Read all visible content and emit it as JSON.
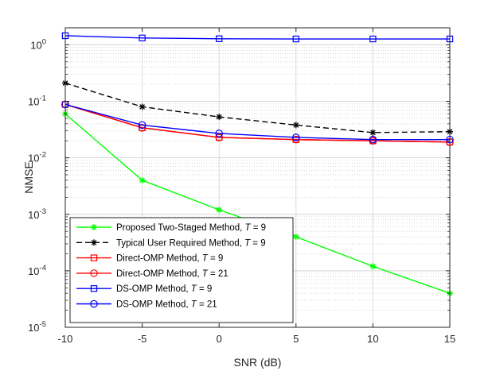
{
  "chart_data": {
    "type": "line",
    "xlabel": "SNR (dB)",
    "ylabel": "NMSE",
    "x": [
      -10,
      -5,
      0,
      5,
      10,
      15
    ],
    "xlim": [
      -10,
      15
    ],
    "ylim": [
      1e-05,
      2
    ],
    "yscale": "log",
    "xtick_labels": [
      "-10",
      "-5",
      "0",
      "5",
      "10",
      "15"
    ],
    "ytick_labels": [
      {
        "base": "10",
        "exp": "-5"
      },
      {
        "base": "10",
        "exp": "-4"
      },
      {
        "base": "10",
        "exp": "-3"
      },
      {
        "base": "10",
        "exp": "-2"
      },
      {
        "base": "10",
        "exp": "-1"
      },
      {
        "base": "10",
        "exp": "0"
      }
    ],
    "grid": true,
    "legend_position": "bottom-left",
    "series": [
      {
        "name": "Proposed Two-Staged Method, ",
        "param": "9",
        "color": "#00ff00",
        "marker": "asterisk",
        "dash": "solid",
        "values": [
          0.06,
          0.004,
          0.0012,
          0.0004,
          0.00012,
          4e-05
        ]
      },
      {
        "name": "Typical User Required Method, ",
        "param": "9",
        "color": "#000000",
        "marker": "asterisk",
        "dash": "dashed",
        "values": [
          0.21,
          0.08,
          0.053,
          0.038,
          0.028,
          0.029
        ]
      },
      {
        "name": "Direct-OMP Method, ",
        "param": "9",
        "color": "#ff0000",
        "marker": "square",
        "dash": "solid",
        "values": [
          0.088,
          0.034,
          0.023,
          0.021,
          0.02,
          0.019
        ]
      },
      {
        "name": "Direct-OMP Method, ",
        "param": "21",
        "color": "#ff0000",
        "marker": "circle",
        "dash": "solid",
        "values": [
          0.088,
          0.034,
          0.023,
          0.021,
          0.02,
          0.019
        ]
      },
      {
        "name": "DS-OMP Method, ",
        "param": "9",
        "color": "#0000ff",
        "marker": "square",
        "dash": "solid",
        "values": [
          1.45,
          1.32,
          1.28,
          1.27,
          1.27,
          1.27
        ]
      },
      {
        "name": "DS-OMP Method, ",
        "param": "21",
        "color": "#0000ff",
        "marker": "circle",
        "dash": "solid",
        "values": [
          0.088,
          0.038,
          0.027,
          0.023,
          0.021,
          0.021
        ]
      }
    ],
    "legend_param_symbol": "T",
    "legend_param_eq": " = "
  }
}
